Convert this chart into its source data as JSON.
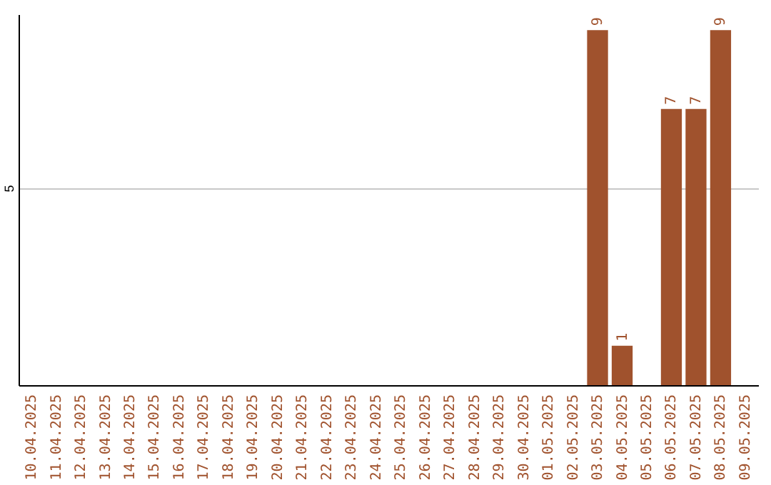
{
  "chart_data": {
    "type": "bar",
    "categories": [
      "10.04.2025",
      "11.04.2025",
      "12.04.2025",
      "13.04.2025",
      "14.04.2025",
      "15.04.2025",
      "16.04.2025",
      "17.04.2025",
      "18.04.2025",
      "19.04.2025",
      "20.04.2025",
      "21.04.2025",
      "22.04.2025",
      "23.04.2025",
      "24.04.2025",
      "25.04.2025",
      "26.04.2025",
      "27.04.2025",
      "28.04.2025",
      "29.04.2025",
      "30.04.2025",
      "01.05.2025",
      "02.05.2025",
      "03.05.2025",
      "04.05.2025",
      "05.05.2025",
      "06.05.2025",
      "07.05.2025",
      "08.05.2025",
      "09.05.2025"
    ],
    "values": [
      null,
      null,
      null,
      null,
      null,
      null,
      null,
      null,
      null,
      null,
      null,
      null,
      null,
      null,
      null,
      null,
      null,
      null,
      null,
      null,
      null,
      null,
      null,
      9,
      1,
      null,
      7,
      7,
      9,
      null
    ],
    "color": "#a0522d",
    "ylim": [
      0,
      9.4
    ],
    "yticks": [
      5
    ],
    "grid": "y",
    "data_labels": true
  }
}
